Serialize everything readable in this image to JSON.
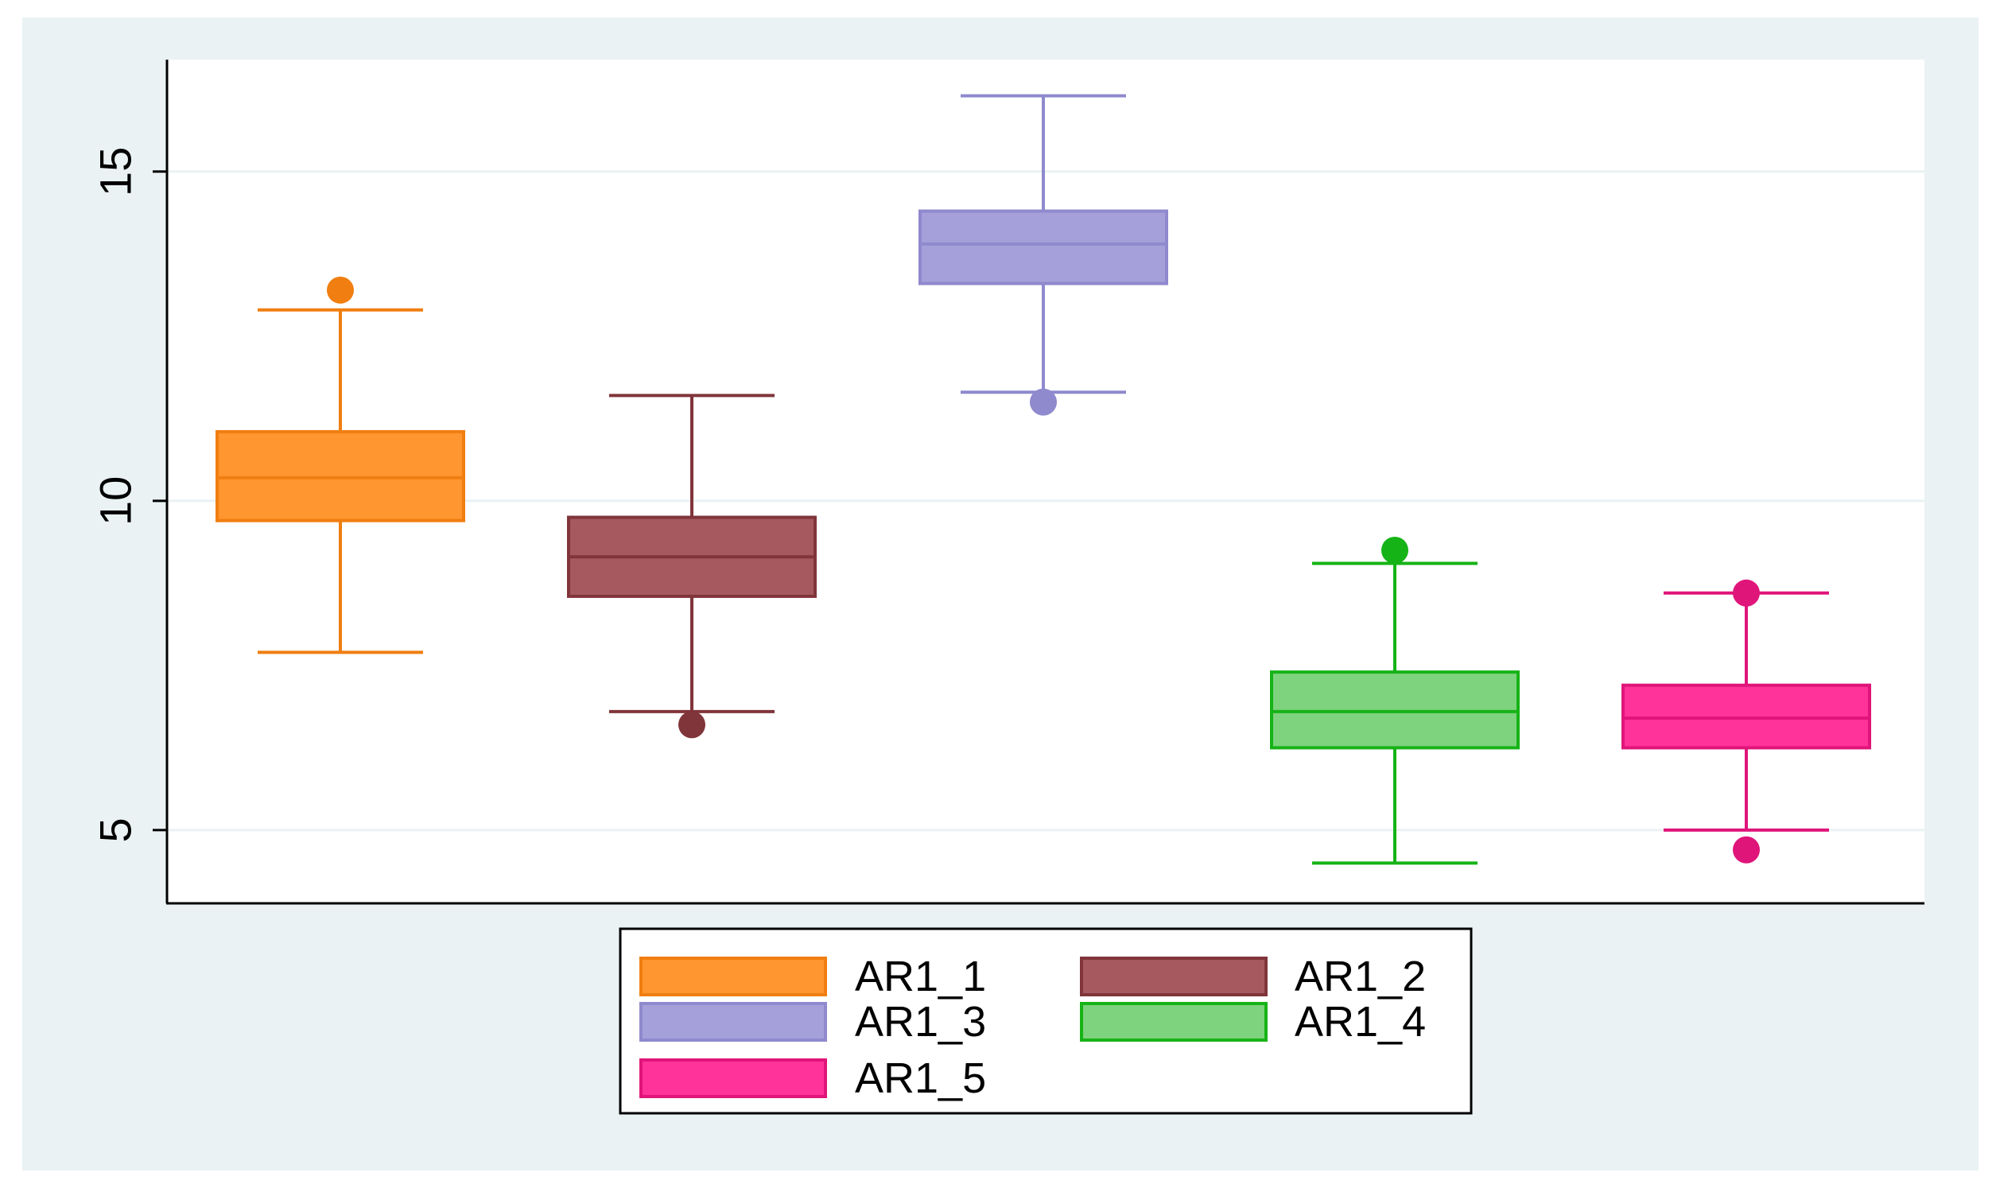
{
  "chart_data": {
    "type": "boxplot",
    "title": "",
    "xlabel": "",
    "ylabel": "",
    "ylim": [
      3.9,
      16.7
    ],
    "yticks": [
      5,
      10,
      15
    ],
    "y_tick_labels": [
      "5",
      "10",
      "15"
    ],
    "grid": true,
    "legend_position": "bottom",
    "series": [
      {
        "name": "AR1_1",
        "color": "#FF962F",
        "edge": "#F07E10",
        "median": 10.35,
        "q1": 9.7,
        "q3": 11.05,
        "whisker_low": 7.7,
        "whisker_high": 12.9,
        "outliers": [
          13.2
        ]
      },
      {
        "name": "AR1_2",
        "color": "#A65A5F",
        "edge": "#80353A",
        "median": 9.15,
        "q1": 8.55,
        "q3": 9.75,
        "whisker_low": 6.8,
        "whisker_high": 11.6,
        "outliers": [
          6.6
        ]
      },
      {
        "name": "AR1_3",
        "color": "#A5A0DA",
        "edge": "#8F89CD",
        "median": 13.9,
        "q1": 13.3,
        "q3": 14.4,
        "whisker_low": 11.65,
        "whisker_high": 16.15,
        "outliers": [
          11.5
        ]
      },
      {
        "name": "AR1_4",
        "color": "#7ED37E",
        "edge": "#16B316",
        "median": 6.8,
        "q1": 6.25,
        "q3": 7.4,
        "whisker_low": 4.5,
        "whisker_high": 9.05,
        "outliers": [
          9.25
        ]
      },
      {
        "name": "AR1_5",
        "color": "#FF3399",
        "edge": "#E0157A",
        "median": 6.7,
        "q1": 6.25,
        "q3": 7.2,
        "whisker_low": 5.0,
        "whisker_high": 8.6,
        "outliers": [
          8.6,
          4.7
        ]
      }
    ]
  }
}
